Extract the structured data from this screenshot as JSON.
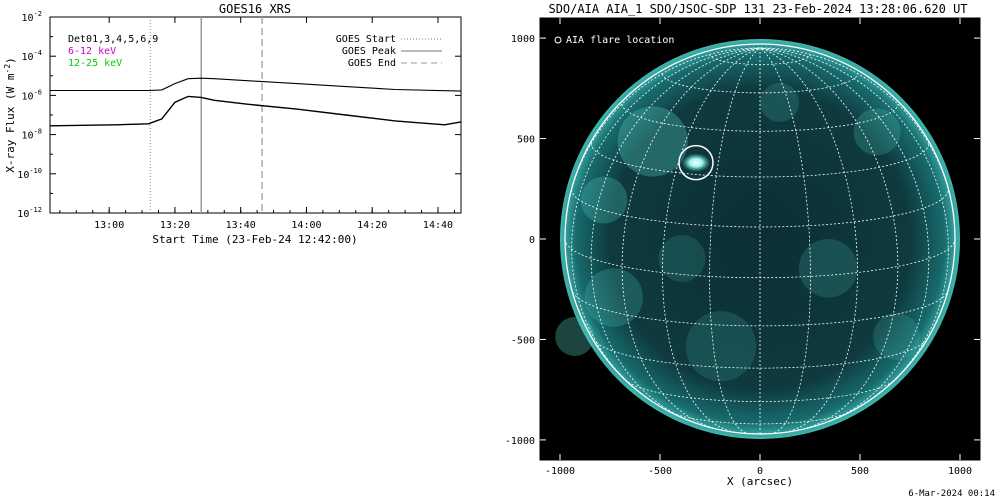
{
  "charts": [
    {
      "title": "GOES16 XRS",
      "ylabel": "X-ray Flux (W m",
      "ylabel_sup": "-2",
      "ylabel_end": ")",
      "xlabel": "Start Time (23-Feb-24 12:42:00)",
      "yticks": [
        {
          "base": "10",
          "exp": "-2",
          "value": -2
        },
        {
          "base": "10",
          "exp": "-4",
          "value": -4
        },
        {
          "base": "10",
          "exp": "-6",
          "value": -6
        },
        {
          "base": "10",
          "exp": "-8",
          "value": -8
        },
        {
          "base": "10",
          "exp": "-10",
          "value": -10
        },
        {
          "base": "10",
          "exp": "-12",
          "value": -12
        }
      ],
      "xticks": [
        {
          "label": "13:00",
          "minutes": 18
        },
        {
          "label": "13:20",
          "minutes": 38
        },
        {
          "label": "13:40",
          "minutes": 58
        },
        {
          "label": "14:00",
          "minutes": 78
        },
        {
          "label": "14:20",
          "minutes": 98
        },
        {
          "label": "14:40",
          "minutes": 118
        }
      ],
      "channel_labels": [
        {
          "text": "Det01,3,4,5,6,9",
          "color": "#000000"
        },
        {
          "text": "6-12 keV",
          "color": "#cc00cc"
        },
        {
          "text": "12-25 keV",
          "color": "#00cc00"
        }
      ],
      "legend": [
        {
          "text": "GOES Start",
          "style": "dotted"
        },
        {
          "text": "GOES Peak",
          "style": "solid"
        },
        {
          "text": "GOES End",
          "style": "dashed"
        }
      ]
    },
    {
      "title": "SDO/AIA AIA_1 SDO/JSOC-SDP 131 23-Feb-2024 13:28:06.620 UT",
      "xlabel": "X (arcsec)",
      "legend_label": "AIA flare location",
      "xticks": [
        "-1000",
        "-500",
        "0",
        "500",
        "1000"
      ],
      "yticks": [
        "1000",
        "500",
        "0",
        "-500",
        "-1000"
      ]
    }
  ],
  "footer": "6-Mar-2024 00:14",
  "chart_data": [
    {
      "type": "line",
      "title": "GOES16 XRS",
      "xlabel": "Start Time (23-Feb-24 12:42:00)",
      "ylabel": "X-ray Flux (W m^-2)",
      "x_unit": "minutes after 12:42:00",
      "xlim": [
        0,
        125
      ],
      "ylim_log10": [
        -12,
        -2
      ],
      "yscale": "log",
      "series": [
        {
          "color": "#000000",
          "x": [
            0,
            30,
            34,
            38,
            42,
            46,
            50,
            60,
            75,
            90,
            105,
            125
          ],
          "log10_y": [
            -5.75,
            -5.75,
            -5.72,
            -5.4,
            -5.15,
            -5.12,
            -5.15,
            -5.25,
            -5.4,
            -5.55,
            -5.7,
            -5.78
          ]
        },
        {
          "color": "#000000",
          "x": [
            0,
            20,
            30,
            34,
            38,
            42,
            46,
            50,
            60,
            75,
            90,
            105,
            120,
            125
          ],
          "log10_y": [
            -7.55,
            -7.5,
            -7.45,
            -7.2,
            -6.35,
            -6.05,
            -6.1,
            -6.25,
            -6.45,
            -6.7,
            -7.0,
            -7.3,
            -7.5,
            -7.35
          ]
        }
      ],
      "events": {
        "start_minutes": 30.5,
        "peak_minutes": 46.0,
        "end_minutes": 64.5
      },
      "grid": false
    },
    {
      "type": "heatmap",
      "title": "SDO/AIA AIA_1 SDO/JSOC-SDP 131 23-Feb-2024 13:28:06.620 UT",
      "xlabel": "X (arcsec)",
      "ylabel": "",
      "xlim": [
        -1100,
        1100
      ],
      "ylim": [
        -1100,
        1100
      ],
      "flare_location": {
        "x": -320,
        "y": 380,
        "radius": 85
      },
      "solar_radius_arcsec": 975,
      "grid": true
    }
  ]
}
